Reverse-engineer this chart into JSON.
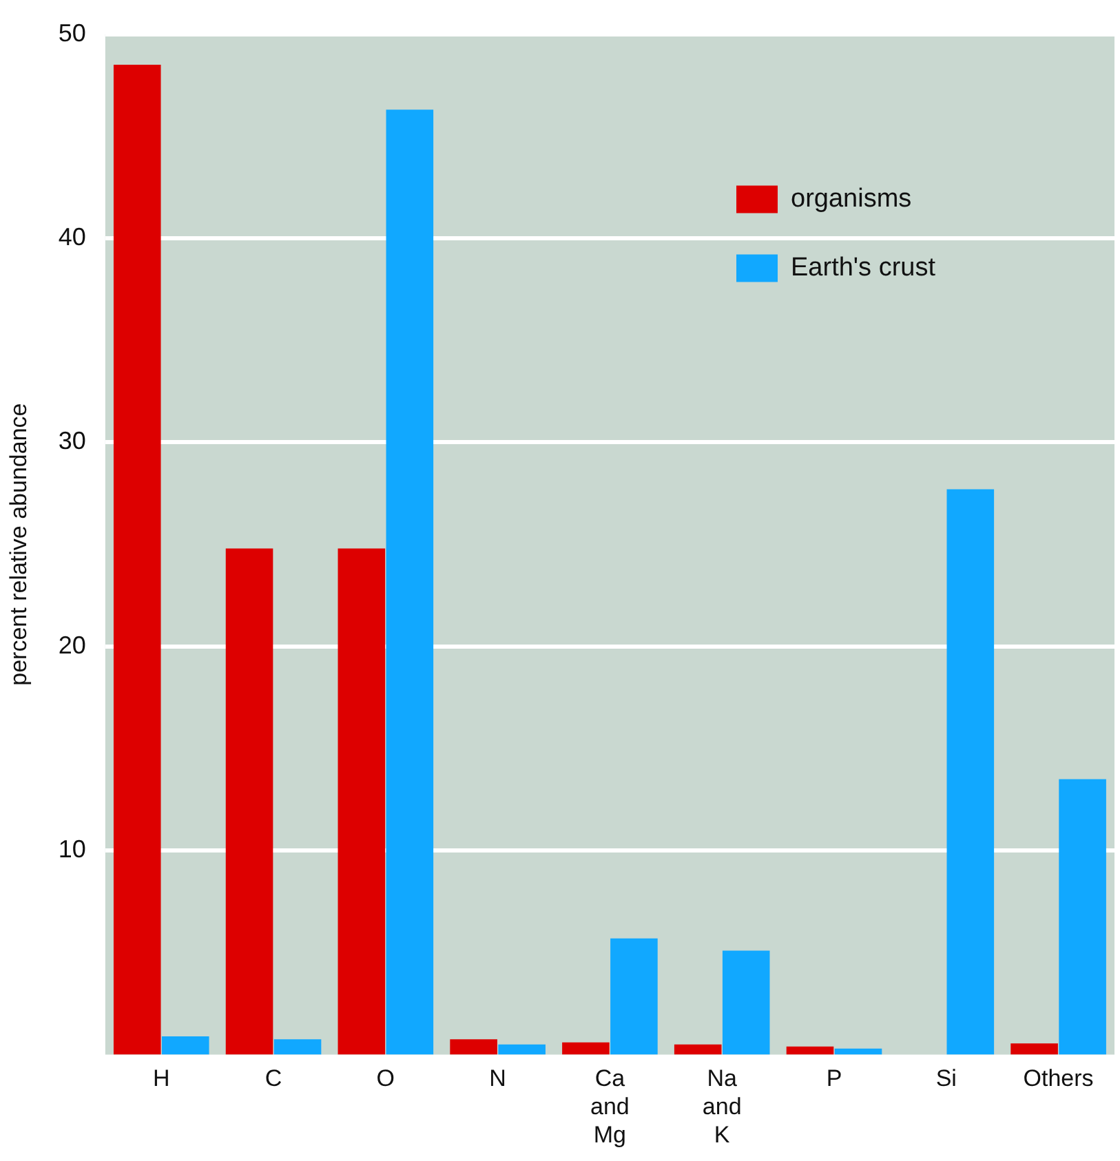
{
  "chart_data": {
    "type": "bar",
    "ylabel": "percent relative abundance",
    "categories": [
      "H",
      "C",
      "O",
      "N",
      "Ca and Mg",
      "Na and K",
      "P",
      "Si",
      "Others"
    ],
    "series": [
      {
        "name": "organisms",
        "color": "#dd0000",
        "values": [
          48.5,
          24.8,
          24.8,
          0.75,
          0.6,
          0.5,
          0.4,
          null,
          0.55
        ]
      },
      {
        "name": "Earth's crust",
        "color": "#11a8ff",
        "values": [
          0.9,
          0.75,
          46.3,
          0.5,
          5.7,
          5.1,
          0.3,
          27.7,
          13.5
        ]
      }
    ],
    "ylim": [
      0,
      50
    ],
    "yticks": [
      10,
      20,
      30,
      40,
      50
    ],
    "grid": "y",
    "legend": "top right"
  }
}
